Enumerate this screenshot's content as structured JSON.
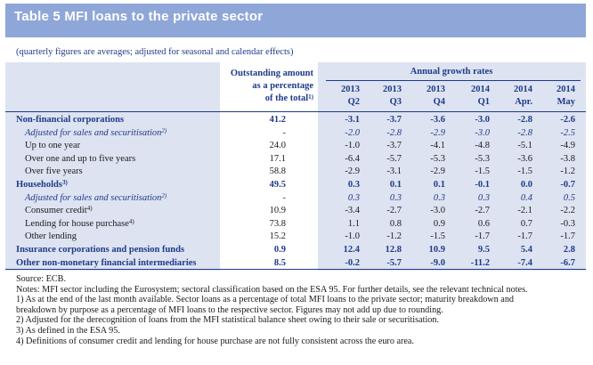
{
  "title": "Table 5 MFI loans to the private sector",
  "subtitle": "(quarterly figures are averages; adjusted for seasonal and calendar effects)",
  "headers": {
    "outstanding": [
      "Outstanding amount",
      "as a percentage",
      "of the total"
    ],
    "outstanding_sup": "1)",
    "growth_group": "Annual growth rates",
    "periods": [
      {
        "year": "2013",
        "sub": "Q2"
      },
      {
        "year": "2013",
        "sub": "Q3"
      },
      {
        "year": "2013",
        "sub": "Q4"
      },
      {
        "year": "2014",
        "sub": "Q1"
      },
      {
        "year": "2014",
        "sub": "Apr."
      },
      {
        "year": "2014",
        "sub": "May"
      }
    ]
  },
  "rows": [
    {
      "label": "Non-financial corporations",
      "sup": "",
      "style": "bold",
      "indent": 0,
      "outstanding": "41.2",
      "values": [
        "-3.1",
        "-3.7",
        "-3.6",
        "-3.0",
        "-2.8",
        "-2.6"
      ]
    },
    {
      "label": "Adjusted for sales and securitisation",
      "sup": "2)",
      "style": "italic",
      "indent": 1,
      "outstanding": "-",
      "values": [
        "-2.0",
        "-2.8",
        "-2.9",
        "-3.0",
        "-2.8",
        "-2.5"
      ]
    },
    {
      "label": "Up to one year",
      "sup": "",
      "style": "plain",
      "indent": 1,
      "outstanding": "24.0",
      "values": [
        "-1.0",
        "-3.7",
        "-4.1",
        "-4.8",
        "-5.1",
        "-4.9"
      ]
    },
    {
      "label": "Over one and up to five years",
      "sup": "",
      "style": "plain",
      "indent": 1,
      "outstanding": "17.1",
      "values": [
        "-6.4",
        "-5.7",
        "-5.3",
        "-5.3",
        "-3.6",
        "-3.8"
      ]
    },
    {
      "label": "Over five years",
      "sup": "",
      "style": "plain",
      "indent": 1,
      "outstanding": "58.8",
      "values": [
        "-2.9",
        "-3.1",
        "-2.9",
        "-1.5",
        "-1.5",
        "-1.2"
      ]
    },
    {
      "label": "Households",
      "sup": "3)",
      "style": "bold",
      "indent": 0,
      "outstanding": "49.5",
      "values": [
        "0.3",
        "0.1",
        "0.1",
        "-0.1",
        "0.0",
        "-0.7"
      ]
    },
    {
      "label": "Adjusted for sales and securitisation",
      "sup": "2)",
      "style": "italic",
      "indent": 1,
      "outstanding": "-",
      "values": [
        "0.3",
        "0.3",
        "0.3",
        "0.3",
        "0.4",
        "0.5"
      ]
    },
    {
      "label": "Consumer credit",
      "sup": "4)",
      "style": "plain",
      "indent": 1,
      "outstanding": "10.9",
      "values": [
        "-3.4",
        "-2.7",
        "-3.0",
        "-2.7",
        "-2.1",
        "-2.2"
      ]
    },
    {
      "label": "Lending for house purchase",
      "sup": "4)",
      "style": "plain",
      "indent": 1,
      "outstanding": "73.8",
      "values": [
        "1.1",
        "0.8",
        "0.9",
        "0.6",
        "0.7",
        "-0.3"
      ]
    },
    {
      "label": "Other lending",
      "sup": "",
      "style": "plain",
      "indent": 1,
      "outstanding": "15.2",
      "values": [
        "-1.0",
        "-1.2",
        "-1.5",
        "-1.7",
        "-1.7",
        "-1.7"
      ]
    },
    {
      "label": "Insurance corporations and pension funds",
      "sup": "",
      "style": "bold",
      "indent": 0,
      "outstanding": "0.9",
      "values": [
        "12.4",
        "12.8",
        "10.9",
        "9.5",
        "5.4",
        "2.8"
      ]
    },
    {
      "label": "Other non-monetary financial intermediaries",
      "sup": "",
      "style": "bold",
      "indent": 0,
      "outstanding": "8.5",
      "values": [
        "-0.2",
        "-5.7",
        "-9.0",
        "-11.2",
        "-7.4",
        "-6.7"
      ]
    }
  ],
  "notes": [
    "Source: ECB.",
    "Notes: MFI sector including the Eurosystem; sectoral classification based on the ESA 95. For further details, see the relevant technical notes.",
    "1) As at the end of the last month available. Sector loans as a percentage of total MFI loans to the private sector; maturity breakdown and",
    "breakdown by purpose as a percentage of MFI loans to the respective sector. Figures may not add up due to rounding.",
    "2) Adjusted for the derecognition of loans from the MFI statistical balance sheet owing to their sale or securitisation.",
    "3) As defined in the ESA 95.",
    "4) Definitions of consumer credit and lending for house purchase are not fully consistent across the euro area."
  ]
}
